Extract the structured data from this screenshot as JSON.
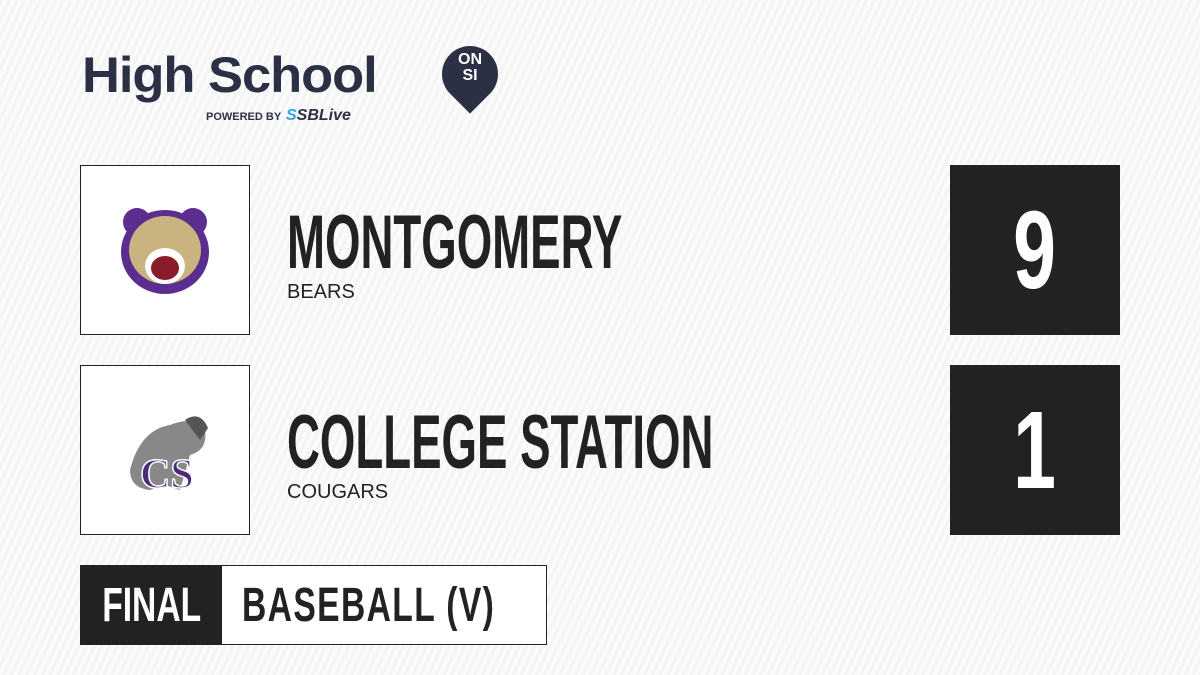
{
  "brand": {
    "title": "High School",
    "badge_line1": "ON",
    "badge_line2": "SI",
    "powered_by": "POWERED BY",
    "partner_prefix": "S",
    "partner": "SBLive"
  },
  "teams": [
    {
      "name": "MONTGOMERY",
      "mascot": "BEARS",
      "score": "9",
      "logo_icon": "bear-logo-icon",
      "logo_color": "#5b2d8e"
    },
    {
      "name": "COLLEGE STATION",
      "mascot": "COUGARS",
      "score": "1",
      "logo_icon": "cougar-logo-icon",
      "logo_color": "#4b2a7a"
    }
  ],
  "status": "FINAL",
  "sport": "BASEBALL (V)"
}
